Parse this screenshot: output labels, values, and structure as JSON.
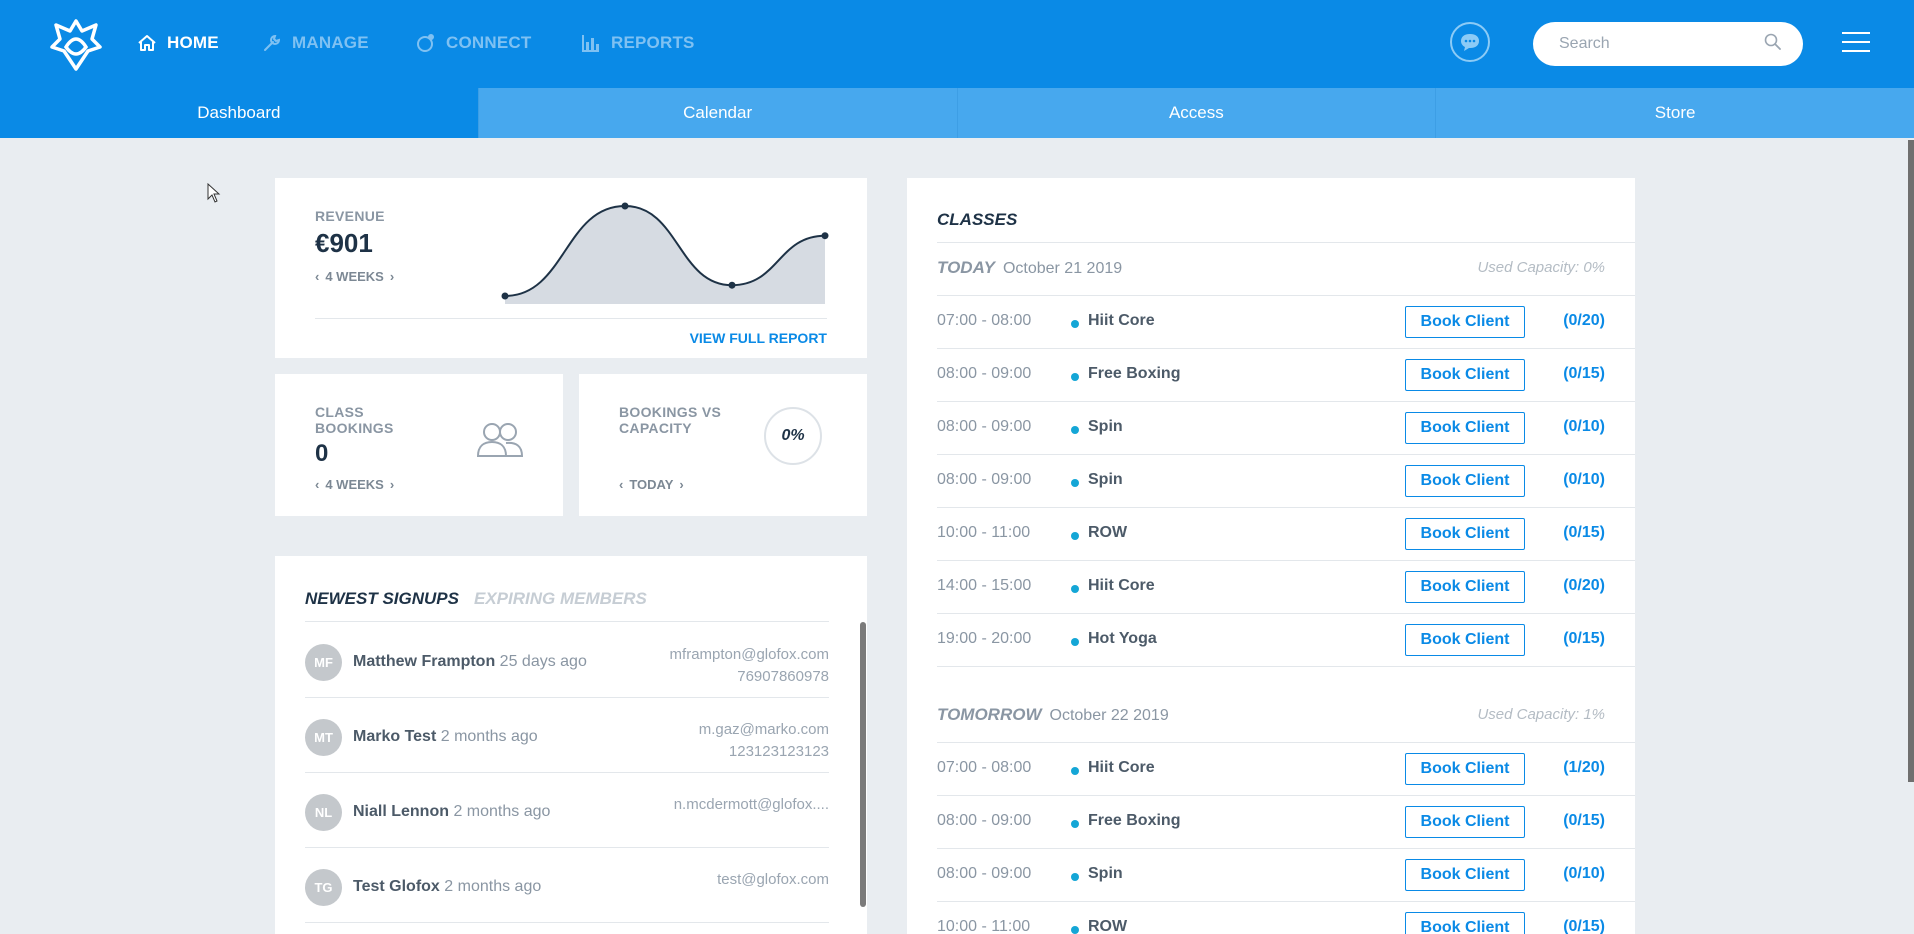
{
  "header": {
    "nav": [
      {
        "label": "HOME",
        "icon": "home-icon"
      },
      {
        "label": "MANAGE",
        "icon": "wrench-icon"
      },
      {
        "label": "CONNECT",
        "icon": "connect-icon"
      },
      {
        "label": "REPORTS",
        "icon": "bar-chart-icon"
      }
    ],
    "search": {
      "placeholder": "Search"
    }
  },
  "subtabs": [
    "Dashboard",
    "Calendar",
    "Access",
    "Store"
  ],
  "revenue": {
    "label": "REVENUE",
    "value": "€901",
    "period": "4 WEEKS",
    "link": "VIEW FULL REPORT",
    "chart_data": {
      "type": "area",
      "values": [
        0,
        100,
        12,
        67
      ],
      "note": "values relative"
    }
  },
  "class_bookings": {
    "label": "CLASS BOOKINGS",
    "value": "0",
    "period": "4 WEEKS"
  },
  "bookings_vs_capacity": {
    "label": "BOOKINGS VS CAPACITY",
    "value": "0%",
    "period": "TODAY"
  },
  "signups": {
    "tab_active": "NEWEST SIGNUPS",
    "tab_inactive": "EXPIRING MEMBERS",
    "rows": [
      {
        "initials": "MF",
        "name": "Matthew Frampton",
        "ago": "25 days ago",
        "email": "mframpton@glofox.com",
        "phone": "76907860978"
      },
      {
        "initials": "MT",
        "name": "Marko Test",
        "ago": "2 months ago",
        "email": "m.gaz@marko.com",
        "phone": "123123123123"
      },
      {
        "initials": "NL",
        "name": "Niall Lennon",
        "ago": "2 months ago",
        "email": "n.mcdermott@glofox....",
        "phone": ""
      },
      {
        "initials": "TG",
        "name": "Test Glofox",
        "ago": "2 months ago",
        "email": "test@glofox.com",
        "phone": ""
      }
    ]
  },
  "classes": {
    "title": "CLASSES",
    "book_label": "Book Client",
    "days": [
      {
        "name": "TODAY",
        "date": "October 21 2019",
        "capacity": "Used Capacity: 0%",
        "classes": [
          {
            "time": "07:00 - 08:00",
            "name": "Hiit Core",
            "count": "(0/20)"
          },
          {
            "time": "08:00 - 09:00",
            "name": "Free Boxing",
            "count": "(0/15)"
          },
          {
            "time": "08:00 - 09:00",
            "name": "Spin",
            "count": "(0/10)"
          },
          {
            "time": "08:00 - 09:00",
            "name": "Spin",
            "count": "(0/10)"
          },
          {
            "time": "10:00 - 11:00",
            "name": "ROW",
            "count": "(0/15)"
          },
          {
            "time": "14:00 - 15:00",
            "name": "Hiit Core",
            "count": "(0/20)"
          },
          {
            "time": "19:00 - 20:00",
            "name": "Hot Yoga",
            "count": "(0/15)"
          }
        ]
      },
      {
        "name": "TOMORROW",
        "date": "October 22 2019",
        "capacity": "Used Capacity: 1%",
        "classes": [
          {
            "time": "07:00 - 08:00",
            "name": "Hiit Core",
            "count": "(1/20)"
          },
          {
            "time": "08:00 - 09:00",
            "name": "Free Boxing",
            "count": "(0/15)"
          },
          {
            "time": "08:00 - 09:00",
            "name": "Spin",
            "count": "(0/10)"
          },
          {
            "time": "10:00 - 11:00",
            "name": "ROW",
            "count": "(0/15)"
          }
        ]
      }
    ]
  },
  "colors": {
    "primary": "#0a8ae6",
    "accent_dot": "#14a6d6"
  }
}
